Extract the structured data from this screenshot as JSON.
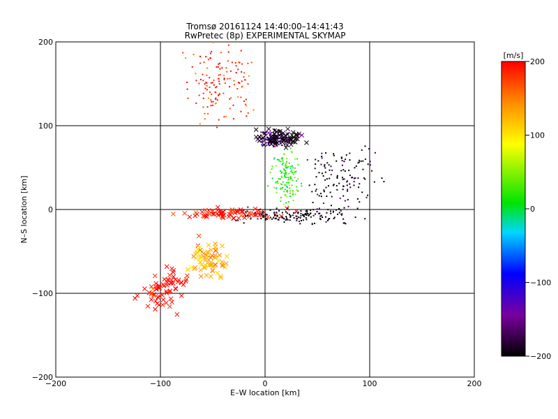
{
  "chart_data": {
    "type": "scatter",
    "title": "Tromsø 20161124  14:40:00–14:41:43",
    "subtitle": "RwPretec (8p) EXPERIMENTAL SKYMAP",
    "xlabel": "E–W location [km]",
    "ylabel": "N–S location [km]",
    "xlim": [
      -200,
      200
    ],
    "ylim": [
      -200,
      200
    ],
    "xticks": [
      -200,
      -100,
      0,
      100,
      200
    ],
    "yticks": [
      -200,
      -100,
      0,
      100,
      200
    ],
    "grid": true,
    "colorbar": {
      "label": "[m/s]",
      "range": [
        -200,
        200
      ],
      "ticks": [
        200,
        100,
        0,
        -100,
        -200
      ]
    },
    "clusters": [
      {
        "region": "upper-left arc",
        "x_center": -45,
        "y_center": 150,
        "x_spread": 25,
        "y_spread": 40,
        "velocity": 190,
        "marker": "dot"
      },
      {
        "region": "north centre core",
        "x_center": 10,
        "y_center": 85,
        "x_spread": 12,
        "y_spread": 8,
        "velocity": -150,
        "marker": "dot"
      },
      {
        "region": "north centre core",
        "x_center": 15,
        "y_center": 85,
        "x_spread": 20,
        "y_spread": 10,
        "velocity": -200,
        "marker": "x"
      },
      {
        "region": "north-east spread",
        "x_center": 75,
        "y_center": 35,
        "x_spread": 28,
        "y_spread": 35,
        "velocity": -200,
        "marker": "dot"
      },
      {
        "region": "centre column",
        "x_center": 20,
        "y_center": 40,
        "x_spread": 12,
        "y_spread": 25,
        "velocity": 20,
        "marker": "dot"
      },
      {
        "region": "equatorial band",
        "x_center": -30,
        "y_center": -5,
        "x_spread": 45,
        "y_spread": 6,
        "velocity": 200,
        "marker": "x"
      },
      {
        "region": "equatorial band",
        "x_center": 25,
        "y_center": -8,
        "x_spread": 40,
        "y_spread": 8,
        "velocity": -200,
        "marker": "dot"
      },
      {
        "region": "south-west arm",
        "x_center": -95,
        "y_center": -100,
        "x_spread": 20,
        "y_spread": 25,
        "velocity": 200,
        "marker": "x"
      },
      {
        "region": "south-west arm",
        "x_center": -55,
        "y_center": -60,
        "x_spread": 15,
        "y_spread": 20,
        "velocity": 130,
        "marker": "x"
      }
    ]
  }
}
